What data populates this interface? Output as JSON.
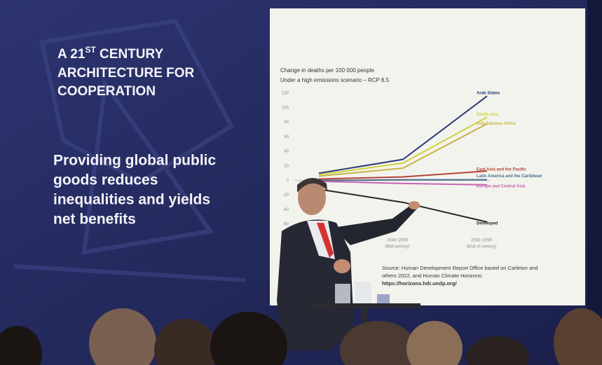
{
  "slide": {
    "heading": {
      "pre": "A 21",
      "sup": "ST",
      "post": " CENTURY",
      "line2": "ARCHITECTURE FOR",
      "line3": "COOPERATION"
    },
    "body": [
      "Providing global public",
      "goods reduces",
      "inequalities and yields",
      "net benefits"
    ],
    "source": [
      "Source: Human Development Report Office based on Carleton and",
      "others 2022, and Human Climate Horizons:",
      "https://horizons.hdr.undp.org/"
    ]
  },
  "chart_data": {
    "type": "line",
    "title": "Change in deaths per 100 000 people",
    "subtitle": "Under a high emissions scenario – RCP 8.5",
    "categories": [
      null,
      "2040–2059",
      "2080–2099"
    ],
    "category_notes": [
      null,
      "(Mid-century)",
      "(End of century)"
    ],
    "ylim": [
      -60,
      120
    ],
    "yticks": [
      120,
      100,
      80,
      60,
      40,
      20,
      0,
      -20,
      -40,
      -60
    ],
    "grid": false,
    "series": [
      {
        "name": "Arab States",
        "color": "#2b3a7a",
        "values": [
          10,
          29,
          116
        ]
      },
      {
        "name": "South Asia",
        "color": "#cfd13c",
        "values": [
          8,
          24,
          87
        ]
      },
      {
        "name": "Sub-Saharan Africa",
        "color": "#c8b24a",
        "values": [
          6,
          17,
          78
        ]
      },
      {
        "name": "East Asia and the Pacific",
        "color": "#b3443c",
        "values": [
          2,
          5,
          13
        ]
      },
      {
        "name": "Latin America and the Caribbean",
        "color": "#4a6e8c",
        "values": [
          0,
          1,
          1
        ]
      },
      {
        "name": "Europe and Central Asia",
        "color": "#c465b4",
        "values": [
          -1,
          -4,
          -6
        ]
      },
      {
        "name": "Developed",
        "color": "#262626",
        "values": [
          -12,
          -30,
          -57
        ]
      }
    ]
  }
}
